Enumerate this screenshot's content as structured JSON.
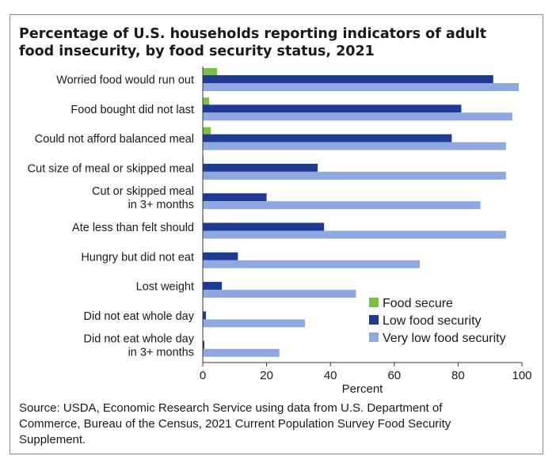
{
  "chart_data": {
    "type": "bar",
    "orientation": "horizontal",
    "title": "Percentage of U.S. households reporting indicators of adult food insecurity, by food security status, 2021",
    "xlabel": "Percent",
    "ylabel": "",
    "xlim": [
      0,
      100
    ],
    "xticks": [
      0,
      20,
      40,
      60,
      80,
      100
    ],
    "grid": false,
    "legend_position": "bottom-right",
    "categories": [
      [
        "Worried food would run out"
      ],
      [
        "Food bought did not last"
      ],
      [
        "Could not afford balanced meal"
      ],
      [
        "Cut size of meal or skipped meal"
      ],
      [
        "Cut or skipped meal",
        "in 3+ months"
      ],
      [
        "Ate less than felt should"
      ],
      [
        "Hungry but did not eat"
      ],
      [
        "Lost weight"
      ],
      [
        "Did not eat whole day"
      ],
      [
        "Did not eat whole day",
        "in 3+ months"
      ]
    ],
    "series": [
      {
        "name": "Food secure",
        "color": "#7ac143",
        "values": [
          4.5,
          2.0,
          2.5,
          0.3,
          0.1,
          0.2,
          0.1,
          0.1,
          0.0,
          0.0
        ]
      },
      {
        "name": "Low food security",
        "color": "#1f3a93",
        "values": [
          91,
          81,
          78,
          36,
          20,
          38,
          11,
          6,
          1,
          0.5
        ]
      },
      {
        "name": "Very low food security",
        "color": "#8fa9e0",
        "values": [
          99,
          97,
          95,
          95,
          87,
          95,
          68,
          48,
          32,
          24
        ]
      }
    ],
    "source": [
      "Source: USDA, Economic Research Service using data from U.S. Department of",
      "Commerce, Bureau of the Census, 2021 Current Population Survey Food Security",
      "Supplement."
    ]
  }
}
